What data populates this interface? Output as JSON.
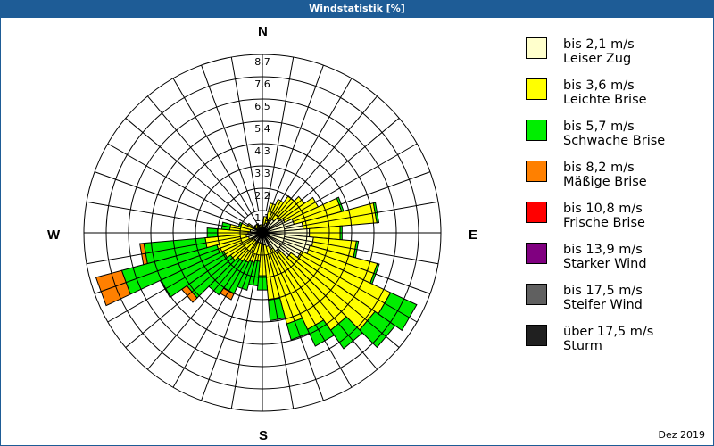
{
  "header": {
    "title": "Windstatistik [%]"
  },
  "compass": {
    "n": "N",
    "e": "E",
    "s": "S",
    "w": "W"
  },
  "footer": {
    "date": "Dez 2019"
  },
  "legend": [
    {
      "label": "bis 2,1 m/s",
      "name": "Leiser Zug",
      "color": "#ffffcc"
    },
    {
      "label": "bis 3,6 m/s",
      "name": "Leichte Brise",
      "color": "#ffff00"
    },
    {
      "label": "bis 5,7 m/s",
      "name": "Schwache Brise",
      "color": "#00ee00"
    },
    {
      "label": "bis 8,2 m/s",
      "name": "Mäßige Brise",
      "color": "#ff8000"
    },
    {
      "label": "bis 10,8 m/s",
      "name": "Frische Brise",
      "color": "#ff0000"
    },
    {
      "label": "bis 13,9 m/s",
      "name": "Starker Wind",
      "color": "#800080"
    },
    {
      "label": "bis 17,5 m/s",
      "name": "Steifer Wind",
      "color": "#606060"
    },
    {
      "label": "über 17,5 m/s",
      "name": "Sturm",
      "color": "#202020"
    }
  ],
  "chart_data": {
    "type": "polar-stacked-bar",
    "title": "Windstatistik [%]",
    "subtitle": "Dez 2019",
    "radial_ticks": [
      "1,1",
      "2,2",
      "3,3",
      "4,3",
      "5,4",
      "6,5",
      "7,6",
      "8,7"
    ],
    "radial_max": 8.7,
    "directions_deg": [
      0,
      10,
      20,
      30,
      40,
      50,
      60,
      70,
      80,
      90,
      100,
      110,
      120,
      130,
      140,
      150,
      160,
      170,
      180,
      190,
      200,
      210,
      220,
      230,
      240,
      250,
      260,
      270,
      280,
      290,
      300,
      310,
      320,
      330,
      340,
      350
    ],
    "series": [
      {
        "name": "bis 2,1 m/s",
        "values": [
          0.3,
          0.4,
          0.5,
          0.6,
          0.8,
          1.0,
          1.2,
          1.6,
          2.0,
          2.3,
          2.5,
          2.4,
          2.1,
          1.7,
          1.2,
          0.9,
          0.7,
          0.6,
          0.6,
          0.5,
          0.5,
          0.5,
          0.5,
          0.5,
          0.6,
          0.7,
          0.8,
          0.7,
          0.6,
          0.5,
          0.4,
          0.3,
          0.3,
          0.3,
          0.3,
          0.3
        ]
      },
      {
        "name": "bis 3,6 m/s",
        "values": [
          0.1,
          0.4,
          1.0,
          1.2,
          1.4,
          1.5,
          1.8,
          2.4,
          3.6,
          1.5,
          2.1,
          3.4,
          4.8,
          5.0,
          4.6,
          4.3,
          3.9,
          2.7,
          1.5,
          0.9,
          1.0,
          1.1,
          1.2,
          1.4,
          1.5,
          1.6,
          2.0,
          1.5,
          1.0,
          0.6,
          0.4,
          0.2,
          0.2,
          0.2,
          0.1,
          0.1
        ]
      },
      {
        "name": "bis 5,7 m/s",
        "values": [
          0.0,
          0.0,
          0.0,
          0.0,
          0.0,
          0.0,
          0.0,
          0.1,
          0.1,
          0.1,
          0.1,
          0.1,
          1.4,
          1.2,
          1.1,
          0.9,
          0.8,
          1.0,
          0.7,
          1.2,
          1.4,
          1.7,
          2.0,
          2.6,
          3.4,
          4.8,
          3.0,
          0.5,
          0.4,
          0.1,
          0.0,
          0.0,
          0.0,
          0.0,
          0.0,
          0.0
        ]
      },
      {
        "name": "bis 8,2 m/s",
        "values": [
          0,
          0,
          0,
          0,
          0,
          0,
          0,
          0,
          0,
          0,
          0,
          0,
          0,
          0,
          0,
          0,
          0,
          0,
          0,
          0,
          0,
          0.3,
          0,
          0.3,
          0,
          1.3,
          0.2,
          0,
          0,
          0,
          0,
          0,
          0,
          0,
          0,
          0
        ]
      },
      {
        "name": "bis 10,8 m/s",
        "values": [
          0,
          0,
          0,
          0,
          0,
          0,
          0,
          0,
          0,
          0,
          0,
          0,
          0,
          0,
          0,
          0,
          0,
          0,
          0,
          0,
          0,
          0,
          0,
          0,
          0,
          0,
          0,
          0,
          0,
          0,
          0,
          0,
          0,
          0,
          0,
          0
        ]
      },
      {
        "name": "bis 13,9 m/s",
        "values": [
          0,
          0,
          0,
          0,
          0,
          0,
          0,
          0,
          0,
          0,
          0,
          0,
          0,
          0,
          0,
          0,
          0,
          0,
          0,
          0,
          0,
          0,
          0,
          0,
          0,
          0,
          0,
          0,
          0,
          0,
          0,
          0,
          0,
          0,
          0,
          0
        ]
      },
      {
        "name": "bis 17,5 m/s",
        "values": [
          0,
          0,
          0,
          0,
          0,
          0,
          0,
          0,
          0,
          0,
          0,
          0,
          0,
          0,
          0,
          0,
          0,
          0,
          0,
          0,
          0,
          0,
          0,
          0,
          0,
          0,
          0,
          0,
          0,
          0,
          0,
          0,
          0,
          0,
          0,
          0
        ]
      },
      {
        "name": "über 17,5 m/s",
        "values": [
          0,
          0,
          0,
          0,
          0,
          0,
          0,
          0,
          0,
          0,
          0,
          0,
          0,
          0,
          0,
          0,
          0,
          0,
          0,
          0,
          0,
          0,
          0,
          0,
          0,
          0,
          0,
          0,
          0,
          0,
          0,
          0,
          0,
          0,
          0,
          0
        ]
      }
    ],
    "legend_position": "right",
    "grid": true
  }
}
